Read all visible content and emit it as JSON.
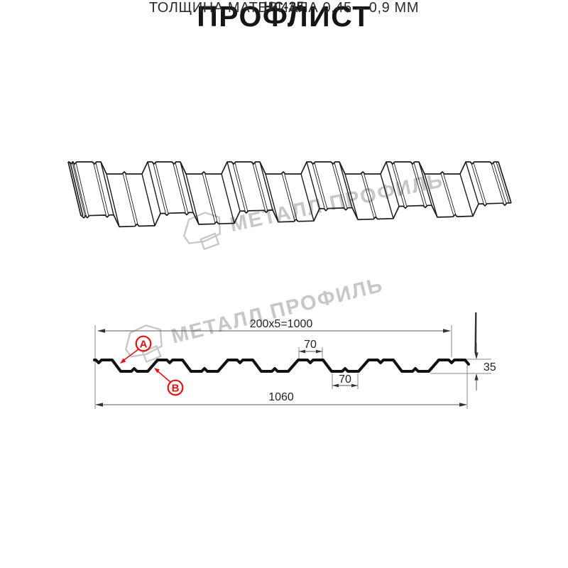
{
  "header": {
    "title": "ПРОФЛИСТ",
    "subtitle": "НС-35"
  },
  "watermark": {
    "text": "МЕТАЛЛ ПРОФИЛЬ",
    "color": "#c7c7c7"
  },
  "diagram": {
    "dimensions": {
      "coverage": "200x5=1000",
      "rib_top_width": "70",
      "rib_bottom_width": "70",
      "profile_height": "35",
      "overall_width": "1060"
    },
    "labels": {
      "point_a": "A",
      "point_b": "B"
    },
    "colors": {
      "accent_red": "#e01312",
      "profile_ink": "#111111",
      "line_art_ink": "#1c1c1c",
      "dimension_line": "#5a5a5a"
    }
  },
  "footer": {
    "caption": "ТОЛЩИНА МАТЕРИАЛА 0,45 – 0,9 ММ"
  }
}
